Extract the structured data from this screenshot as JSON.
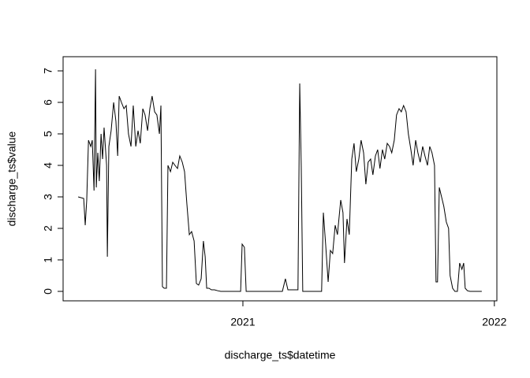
{
  "chart_data": {
    "type": "line",
    "xlabel": "discharge_ts$datetime",
    "ylabel": "discharge_ts$value",
    "color": "#000000",
    "grid": false,
    "xlim": [
      2020.285,
      2022.01
    ],
    "ylim": [
      -0.3,
      7.45
    ],
    "xticks": [
      2021,
      2022
    ],
    "yticks": [
      0,
      1,
      2,
      3,
      4,
      5,
      6,
      7
    ],
    "x": [
      2020.345,
      2020.367,
      2020.373,
      2020.379,
      2020.386,
      2020.395,
      2020.401,
      2020.408,
      2020.414,
      2020.417,
      2020.423,
      2020.429,
      2020.436,
      2020.442,
      2020.448,
      2020.458,
      2020.461,
      2020.467,
      2020.476,
      2020.486,
      2020.495,
      2020.502,
      2020.508,
      2020.517,
      2020.527,
      2020.536,
      2020.545,
      2020.555,
      2020.564,
      2020.574,
      2020.583,
      2020.592,
      2020.602,
      2020.611,
      2020.621,
      2020.63,
      2020.639,
      2020.649,
      2020.658,
      2020.668,
      2020.674,
      2020.68,
      2020.687,
      2020.696,
      2020.702,
      2020.712,
      2020.721,
      2020.73,
      2020.74,
      2020.749,
      2020.759,
      2020.768,
      2020.777,
      2020.787,
      2020.796,
      2020.806,
      2020.815,
      2020.824,
      2020.834,
      2020.843,
      2020.85,
      2020.856,
      2020.865,
      2020.875,
      2020.887,
      2020.9,
      2020.912,
      2020.991,
      2020.997,
      2021.006,
      2021.013,
      2021.132,
      2021.157,
      2021.169,
      2021.179,
      2021.219,
      2021.226,
      2021.232,
      2021.238,
      2021.313,
      2021.32,
      2021.329,
      2021.339,
      2021.348,
      2021.357,
      2021.367,
      2021.376,
      2021.389,
      2021.398,
      2021.404,
      2021.414,
      2021.423,
      2021.433,
      2021.442,
      2021.451,
      2021.461,
      2021.47,
      2021.48,
      2021.489,
      2021.498,
      2021.508,
      2021.517,
      2021.527,
      2021.536,
      2021.545,
      2021.555,
      2021.564,
      2021.574,
      2021.583,
      2021.592,
      2021.602,
      2021.611,
      2021.621,
      2021.63,
      2021.639,
      2021.649,
      2021.658,
      2021.668,
      2021.677,
      2021.687,
      2021.696,
      2021.705,
      2021.715,
      2021.724,
      2021.734,
      2021.743,
      2021.752,
      2021.762,
      2021.768,
      2021.774,
      2021.781,
      2021.79,
      2021.799,
      2021.809,
      2021.818,
      2021.824,
      2021.834,
      2021.843,
      2021.853,
      2021.862,
      2021.871,
      2021.878,
      2021.884,
      2021.893,
      2021.903,
      2021.95
    ],
    "values": [
      3.0,
      2.95,
      2.1,
      2.9,
      4.8,
      4.6,
      4.8,
      3.2,
      7.05,
      3.3,
      4.4,
      3.5,
      5.0,
      4.2,
      5.2,
      4.0,
      1.1,
      4.6,
      5.1,
      6.0,
      5.4,
      4.3,
      6.2,
      6.0,
      5.8,
      5.9,
      5.0,
      4.6,
      5.9,
      4.6,
      5.1,
      4.7,
      5.8,
      5.6,
      5.1,
      5.8,
      6.2,
      5.7,
      5.6,
      5.0,
      5.9,
      0.15,
      0.1,
      0.1,
      4.0,
      3.8,
      4.1,
      4.0,
      3.9,
      4.3,
      4.1,
      3.8,
      2.8,
      1.8,
      1.9,
      1.6,
      0.25,
      0.2,
      0.4,
      1.6,
      1.1,
      0.1,
      0.1,
      0.05,
      0.05,
      0.02,
      0,
      0,
      1.5,
      1.4,
      0,
      0,
      0,
      0.4,
      0.05,
      0.05,
      6.6,
      4.0,
      0,
      0,
      2.5,
      1.5,
      0.3,
      1.3,
      1.2,
      2.1,
      1.8,
      2.9,
      2.5,
      0.9,
      2.3,
      1.8,
      4.2,
      4.7,
      3.8,
      4.2,
      4.8,
      4.4,
      3.4,
      4.1,
      4.2,
      3.7,
      4.3,
      4.5,
      3.9,
      4.5,
      4.2,
      4.7,
      4.6,
      4.4,
      4.8,
      5.6,
      5.8,
      5.7,
      5.9,
      5.7,
      5.0,
      4.5,
      4.0,
      4.8,
      4.4,
      4.1,
      4.6,
      4.3,
      4.0,
      4.6,
      4.4,
      4.0,
      0.3,
      0.3,
      3.3,
      3.0,
      2.7,
      2.2,
      2.0,
      0.5,
      0.1,
      0.0,
      0.0,
      0.9,
      0.7,
      0.9,
      0.1,
      0.02,
      0,
      0
    ]
  }
}
